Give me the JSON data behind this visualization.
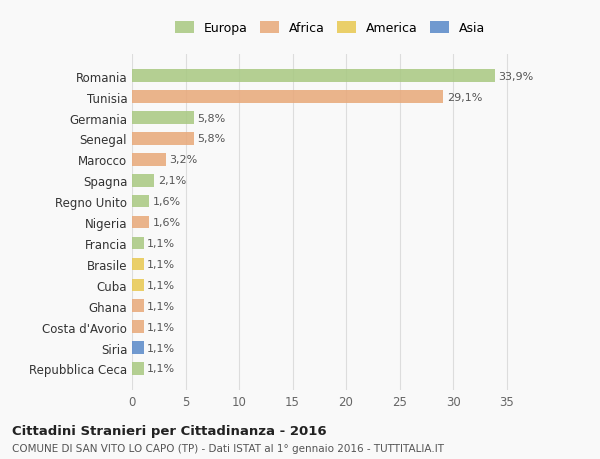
{
  "countries": [
    "Romania",
    "Tunisia",
    "Germania",
    "Senegal",
    "Marocco",
    "Spagna",
    "Regno Unito",
    "Nigeria",
    "Francia",
    "Brasile",
    "Cuba",
    "Ghana",
    "Costa d'Avorio",
    "Siria",
    "Repubblica Ceca"
  ],
  "values": [
    33.9,
    29.1,
    5.8,
    5.8,
    3.2,
    2.1,
    1.6,
    1.6,
    1.1,
    1.1,
    1.1,
    1.1,
    1.1,
    1.1,
    1.1
  ],
  "labels": [
    "33,9%",
    "29,1%",
    "5,8%",
    "5,8%",
    "3,2%",
    "2,1%",
    "1,6%",
    "1,6%",
    "1,1%",
    "1,1%",
    "1,1%",
    "1,1%",
    "1,1%",
    "1,1%",
    "1,1%"
  ],
  "continents": [
    "Europa",
    "Africa",
    "Europa",
    "Africa",
    "Africa",
    "Europa",
    "Europa",
    "Africa",
    "Europa",
    "America",
    "America",
    "Africa",
    "Africa",
    "Asia",
    "Europa"
  ],
  "continent_colors": {
    "Europa": "#a8c880",
    "Africa": "#e8a878",
    "America": "#e8c850",
    "Asia": "#5888c8"
  },
  "legend_entries": [
    "Europa",
    "Africa",
    "America",
    "Asia"
  ],
  "title": "Cittadini Stranieri per Cittadinanza - 2016",
  "subtitle": "COMUNE DI SAN VITO LO CAPO (TP) - Dati ISTAT al 1° gennaio 2016 - TUTTITALIA.IT",
  "xlim": [
    0,
    37
  ],
  "xticks": [
    0,
    5,
    10,
    15,
    20,
    25,
    30,
    35
  ],
  "background_color": "#f9f9f9",
  "grid_color": "#dddddd"
}
